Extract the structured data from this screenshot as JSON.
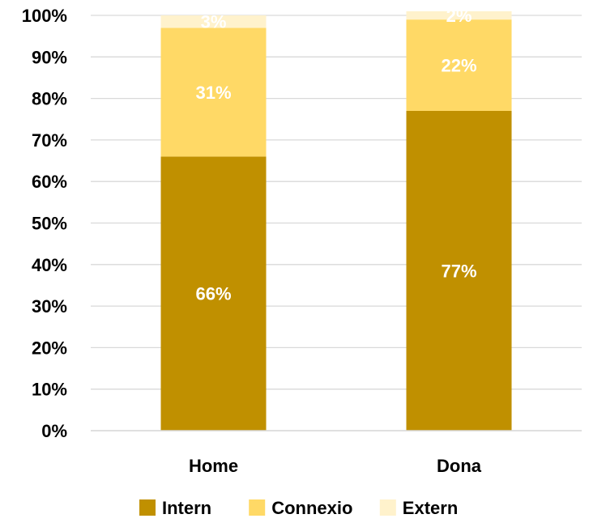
{
  "chart_data": {
    "type": "bar",
    "stacked": true,
    "categories": [
      "Home",
      "Dona"
    ],
    "series": [
      {
        "name": "Intern",
        "values": [
          66,
          77
        ],
        "labels": [
          "66%",
          "77%"
        ]
      },
      {
        "name": "Connexio",
        "values": [
          31,
          22
        ],
        "labels": [
          "31%",
          "22%"
        ]
      },
      {
        "name": "Extern",
        "values": [
          3,
          2
        ],
        "labels": [
          "3%",
          "2%"
        ]
      }
    ],
    "yticks": [
      "0%",
      "10%",
      "20%",
      "30%",
      "40%",
      "50%",
      "60%",
      "70%",
      "80%",
      "90%",
      "100%"
    ],
    "ylim": [
      0,
      100
    ],
    "grid": true,
    "legend_position": "bottom",
    "colors": {
      "Intern": "#c09000",
      "Connexio": "#ffd966",
      "Extern": "#fff2cc",
      "grid": "#d9d9d9",
      "axis": "#d9d9d9",
      "label": "#ffffff",
      "text": "#000000"
    }
  }
}
